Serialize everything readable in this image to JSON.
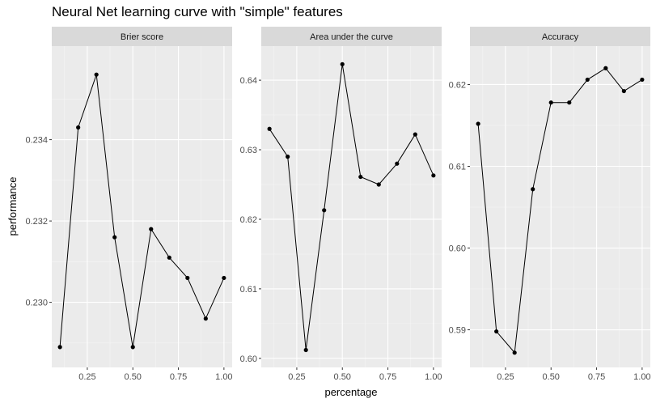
{
  "chart_data": {
    "type": "line",
    "title": "Neural Net learning curve with \"simple\" features",
    "xlabel": "percentage",
    "ylabel": "performance",
    "x": [
      0.1,
      0.2,
      0.3,
      0.4,
      0.5,
      0.6,
      0.7,
      0.8,
      0.9,
      1.0
    ],
    "x_ticks": [
      "0.25",
      "0.50",
      "0.75",
      "1.00"
    ],
    "x_tick_values": [
      0.25,
      0.5,
      0.75,
      1.0
    ],
    "xlim": [
      0.055,
      1.045
    ],
    "grid": true,
    "panels": [
      {
        "name": "Brier score",
        "ylim": [
          0.2284,
          0.2363
        ],
        "y_ticks": [
          "0.230",
          "0.232",
          "0.234"
        ],
        "y_tick_values": [
          0.23,
          0.232,
          0.234
        ],
        "values": [
          0.2289,
          0.2343,
          0.2356,
          0.2316,
          0.2289,
          0.2318,
          0.2311,
          0.2306,
          0.2296,
          0.2306
        ]
      },
      {
        "name": "Area under the curve",
        "ylim": [
          0.5987,
          0.6449
        ],
        "y_ticks": [
          "0.60",
          "0.61",
          "0.62",
          "0.63",
          "0.64"
        ],
        "y_tick_values": [
          0.6,
          0.61,
          0.62,
          0.63,
          0.64
        ],
        "values": [
          0.633,
          0.629,
          0.6012,
          0.6213,
          0.6423,
          0.6261,
          0.625,
          0.628,
          0.6322,
          0.6263
        ]
      },
      {
        "name": "Accuracy",
        "ylim": [
          0.5854,
          0.6247
        ],
        "y_ticks": [
          "0.59",
          "0.60",
          "0.61",
          "0.62"
        ],
        "y_tick_values": [
          0.59,
          0.6,
          0.61,
          0.62
        ],
        "values": [
          0.6152,
          0.5898,
          0.5872,
          0.6072,
          0.6178,
          0.6178,
          0.6206,
          0.622,
          0.6192,
          0.6206
        ]
      }
    ]
  },
  "colors": {
    "panel_bg": "#ebebeb",
    "strip_bg": "#d9d9d9",
    "grid_major": "#ffffff",
    "grid_minor": "#f5f5f5",
    "line": "#000000",
    "point": "#000000"
  }
}
